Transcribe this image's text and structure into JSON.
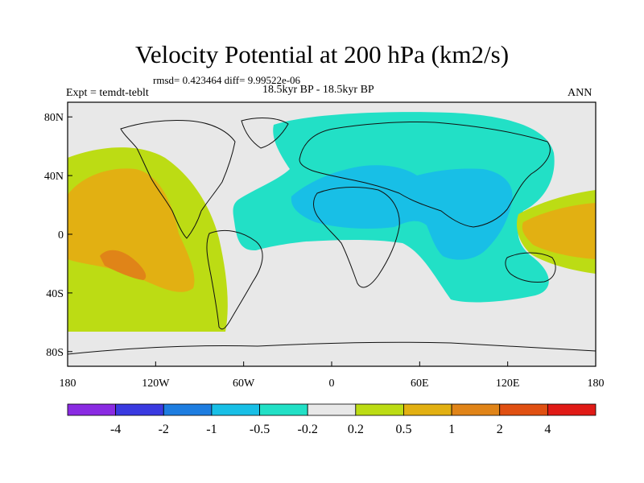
{
  "title": "Velocity Potential at 200 hPa (km2/s)",
  "stats": "rmsd= 0.423464 diff= 9.99522e-06",
  "experiment": "Expt = temdt-teblt",
  "period": "18.5kyr BP - 18.5kyr BP",
  "season": "ANN",
  "map": {
    "projection": "cylindrical equidistant",
    "lon_range": [
      -180,
      180
    ],
    "lat_range": [
      -90,
      90
    ],
    "lon_tick_labels": [
      "180",
      "120W",
      "60W",
      "0",
      "60E",
      "120E",
      "180"
    ],
    "lat_tick_labels": [
      "80N",
      "40N",
      "0",
      "40S",
      "80S"
    ],
    "features": [
      {
        "name": "negative-center-eurasia-africa",
        "level": "-1 to -0.5"
      },
      {
        "name": "positive-center-east-pacific",
        "level": "1 to 2"
      }
    ]
  },
  "colorbar": {
    "colors": [
      "#8a2be2",
      "#3a3ae0",
      "#1e7de0",
      "#18bfe6",
      "#22e0c6",
      "#e8e8e8",
      "#bcdc14",
      "#e2b012",
      "#e08418",
      "#e05012",
      "#e01a16"
    ],
    "labels": [
      "-4",
      "-2",
      "-1",
      "-0.5",
      "-0.2",
      "0.2",
      "0.5",
      "1",
      "2",
      "4"
    ]
  }
}
